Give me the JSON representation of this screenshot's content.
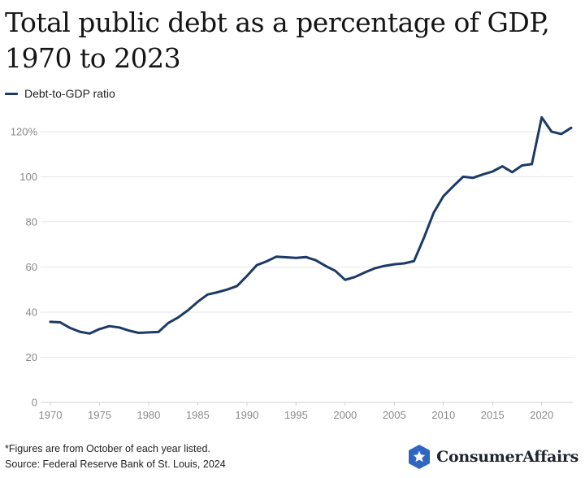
{
  "header": {
    "title": "Total public debt as a percentage of GDP, 1970 to 2023"
  },
  "legend": {
    "label": "Debt-to-GDP ratio"
  },
  "colors": {
    "series": "#1b3a66",
    "grid": "#e6e6e6",
    "tick": "#8a8a8a",
    "logo_badge": "#2f67c0"
  },
  "chart_data": {
    "type": "line",
    "title": "Total public debt as a percentage of GDP, 1970 to 2023",
    "xlabel": "",
    "ylabel": "",
    "xlim": [
      1970,
      2023
    ],
    "ylim": [
      0,
      125
    ],
    "grid": "horizontal",
    "legend_placement": "top-left",
    "x_ticks": [
      1970,
      1975,
      1980,
      1985,
      1990,
      1995,
      2000,
      2005,
      2010,
      2015,
      2020
    ],
    "x_tick_labels": [
      "1970",
      "1975",
      "1980",
      "1985",
      "1990",
      "1995",
      "2000",
      "2005",
      "2010",
      "2015",
      "2020"
    ],
    "y_ticks": [
      0,
      20,
      40,
      60,
      80,
      100,
      120
    ],
    "y_tick_labels": [
      "0",
      "20",
      "40",
      "60",
      "80",
      "100",
      "120%"
    ],
    "series": [
      {
        "name": "Debt-to-GDP ratio",
        "x": [
          1970,
          1971,
          1972,
          1973,
          1974,
          1975,
          1976,
          1977,
          1978,
          1979,
          1980,
          1981,
          1982,
          1983,
          1984,
          1985,
          1986,
          1987,
          1988,
          1989,
          1990,
          1991,
          1992,
          1993,
          1994,
          1995,
          1996,
          1997,
          1998,
          1999,
          2000,
          2001,
          2002,
          2003,
          2004,
          2005,
          2006,
          2007,
          2008,
          2009,
          2010,
          2011,
          2012,
          2013,
          2014,
          2015,
          2016,
          2017,
          2018,
          2019,
          2020,
          2021,
          2022,
          2023
        ],
        "y": [
          35.7,
          35.5,
          33.0,
          31.3,
          30.5,
          32.5,
          33.8,
          33.2,
          31.8,
          30.8,
          31.0,
          31.2,
          35.2,
          37.6,
          40.8,
          44.6,
          47.8,
          48.8,
          50.0,
          51.6,
          56.0,
          60.8,
          62.5,
          64.6,
          64.3,
          64.0,
          64.4,
          63.0,
          60.5,
          58.3,
          54.3,
          55.6,
          57.6,
          59.4,
          60.5,
          61.2,
          61.6,
          62.6,
          72.8,
          84.0,
          91.4,
          95.8,
          100.0,
          99.5,
          101.0,
          102.3,
          104.6,
          102.0,
          105.0,
          105.6,
          126.3,
          120.0,
          118.9,
          121.7
        ]
      }
    ]
  },
  "footnotes": {
    "note": "*Figures are from October of each year listed.",
    "source": "Source: Federal Reserve Bank of St. Louis, 2024"
  },
  "logo": {
    "text": "ConsumerAffairs",
    "icon": "star-shield-icon"
  }
}
